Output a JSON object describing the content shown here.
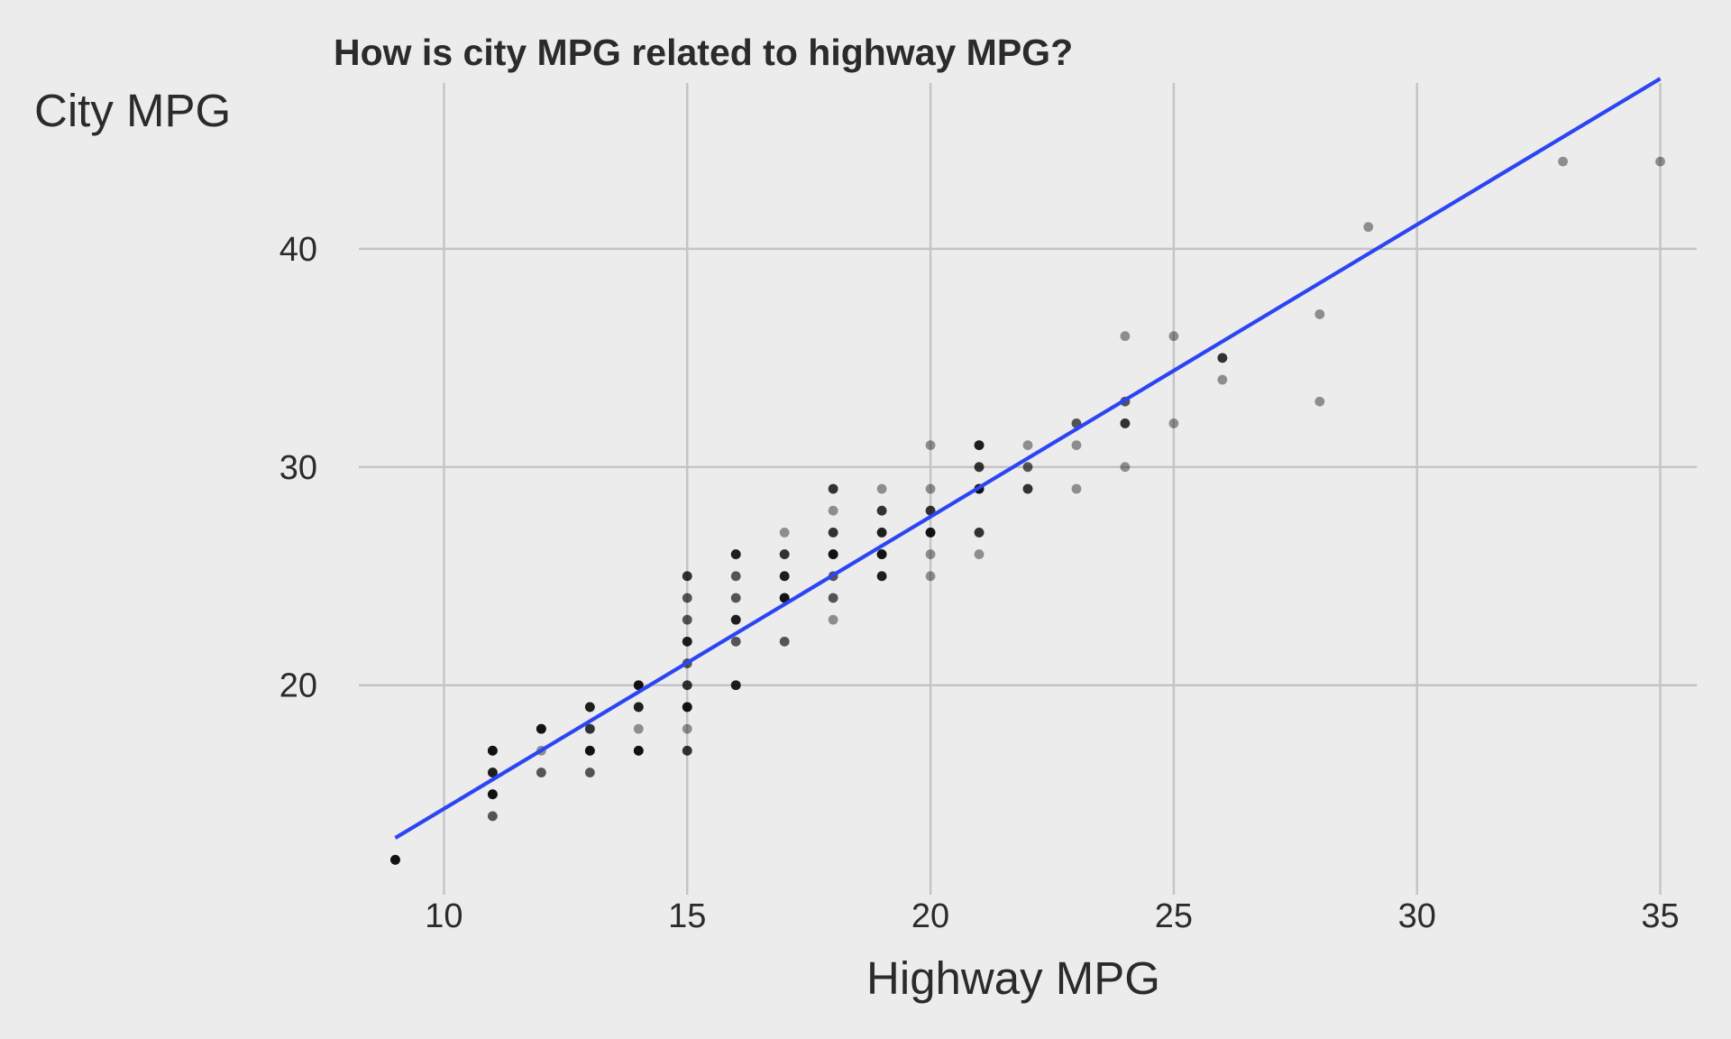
{
  "chart_data": {
    "type": "scatter",
    "title": "How is city MPG related to highway MPG?",
    "xlabel": "Highway MPG",
    "ylabel": "City MPG",
    "xlim": [
      8.25,
      35.75
    ],
    "ylim": [
      10.4,
      47.6
    ],
    "x_ticks": [
      10,
      15,
      20,
      25,
      30,
      35
    ],
    "y_ticks": [
      20,
      30,
      40
    ],
    "x_tick_labels": [
      "10",
      "15",
      "20",
      "25",
      "30",
      "35"
    ],
    "y_tick_labels": [
      "20",
      "30",
      "40"
    ],
    "grid": true,
    "legend": "none",
    "colors": {
      "background": "#ececec",
      "grid": "#c4c4c4",
      "points": "#000000",
      "fit_line": "#2c45f2",
      "text": "#2b2b2b"
    },
    "point_opacity": 0.4,
    "points": [
      [
        9,
        12
      ],
      [
        9,
        12
      ],
      [
        9,
        12
      ],
      [
        9,
        12
      ],
      [
        9,
        12
      ],
      [
        11,
        14
      ],
      [
        11,
        14
      ],
      [
        11,
        15
      ],
      [
        11,
        15
      ],
      [
        11,
        15
      ],
      [
        11,
        15
      ],
      [
        11,
        15
      ],
      [
        11,
        16
      ],
      [
        11,
        16
      ],
      [
        11,
        16
      ],
      [
        11,
        16
      ],
      [
        11,
        17
      ],
      [
        11,
        17
      ],
      [
        11,
        17
      ],
      [
        11,
        17
      ],
      [
        11,
        17
      ],
      [
        12,
        16
      ],
      [
        12,
        16
      ],
      [
        12,
        17
      ],
      [
        12,
        18
      ],
      [
        12,
        18
      ],
      [
        12,
        18
      ],
      [
        12,
        18
      ],
      [
        12,
        18
      ],
      [
        13,
        16
      ],
      [
        13,
        16
      ],
      [
        13,
        17
      ],
      [
        13,
        17
      ],
      [
        13,
        17
      ],
      [
        13,
        17
      ],
      [
        13,
        17
      ],
      [
        13,
        18
      ],
      [
        13,
        18
      ],
      [
        13,
        18
      ],
      [
        13,
        19
      ],
      [
        13,
        19
      ],
      [
        13,
        19
      ],
      [
        13,
        19
      ],
      [
        14,
        17
      ],
      [
        14,
        17
      ],
      [
        14,
        17
      ],
      [
        14,
        17
      ],
      [
        14,
        17
      ],
      [
        14,
        18
      ],
      [
        14,
        19
      ],
      [
        14,
        19
      ],
      [
        14,
        19
      ],
      [
        14,
        19
      ],
      [
        14,
        20
      ],
      [
        14,
        20
      ],
      [
        14,
        20
      ],
      [
        14,
        20
      ],
      [
        14,
        20
      ],
      [
        15,
        17
      ],
      [
        15,
        17
      ],
      [
        15,
        17
      ],
      [
        15,
        18
      ],
      [
        15,
        19
      ],
      [
        15,
        19
      ],
      [
        15,
        19
      ],
      [
        15,
        19
      ],
      [
        15,
        19
      ],
      [
        15,
        20
      ],
      [
        15,
        20
      ],
      [
        15,
        20
      ],
      [
        15,
        21
      ],
      [
        15,
        21
      ],
      [
        15,
        22
      ],
      [
        15,
        22
      ],
      [
        15,
        22
      ],
      [
        15,
        22
      ],
      [
        15,
        23
      ],
      [
        15,
        23
      ],
      [
        15,
        24
      ],
      [
        15,
        24
      ],
      [
        15,
        25
      ],
      [
        15,
        25
      ],
      [
        15,
        25
      ],
      [
        16,
        20
      ],
      [
        16,
        20
      ],
      [
        16,
        20
      ],
      [
        16,
        20
      ],
      [
        16,
        22
      ],
      [
        16,
        22
      ],
      [
        16,
        23
      ],
      [
        16,
        23
      ],
      [
        16,
        23
      ],
      [
        16,
        23
      ],
      [
        16,
        24
      ],
      [
        16,
        24
      ],
      [
        16,
        25
      ],
      [
        16,
        25
      ],
      [
        16,
        26
      ],
      [
        16,
        26
      ],
      [
        16,
        26
      ],
      [
        16,
        26
      ],
      [
        17,
        22
      ],
      [
        17,
        22
      ],
      [
        17,
        24
      ],
      [
        17,
        24
      ],
      [
        17,
        24
      ],
      [
        17,
        24
      ],
      [
        17,
        24
      ],
      [
        17,
        25
      ],
      [
        17,
        25
      ],
      [
        17,
        25
      ],
      [
        17,
        25
      ],
      [
        17,
        26
      ],
      [
        17,
        26
      ],
      [
        17,
        26
      ],
      [
        17,
        27
      ],
      [
        18,
        23
      ],
      [
        18,
        24
      ],
      [
        18,
        24
      ],
      [
        18,
        25
      ],
      [
        18,
        25
      ],
      [
        18,
        26
      ],
      [
        18,
        26
      ],
      [
        18,
        26
      ],
      [
        18,
        26
      ],
      [
        18,
        26
      ],
      [
        18,
        27
      ],
      [
        18,
        27
      ],
      [
        18,
        27
      ],
      [
        18,
        28
      ],
      [
        18,
        29
      ],
      [
        18,
        29
      ],
      [
        18,
        29
      ],
      [
        19,
        25
      ],
      [
        19,
        25
      ],
      [
        19,
        25
      ],
      [
        19,
        25
      ],
      [
        19,
        26
      ],
      [
        19,
        26
      ],
      [
        19,
        26
      ],
      [
        19,
        26
      ],
      [
        19,
        26
      ],
      [
        19,
        27
      ],
      [
        19,
        27
      ],
      [
        19,
        27
      ],
      [
        19,
        27
      ],
      [
        19,
        28
      ],
      [
        19,
        28
      ],
      [
        19,
        28
      ],
      [
        19,
        29
      ],
      [
        20,
        25
      ],
      [
        20,
        26
      ],
      [
        20,
        27
      ],
      [
        20,
        27
      ],
      [
        20,
        27
      ],
      [
        20,
        27
      ],
      [
        20,
        27
      ],
      [
        20,
        28
      ],
      [
        20,
        28
      ],
      [
        20,
        28
      ],
      [
        20,
        29
      ],
      [
        20,
        31
      ],
      [
        21,
        26
      ],
      [
        21,
        27
      ],
      [
        21,
        27
      ],
      [
        21,
        27
      ],
      [
        21,
        29
      ],
      [
        21,
        29
      ],
      [
        21,
        29
      ],
      [
        21,
        29
      ],
      [
        21,
        29
      ],
      [
        21,
        30
      ],
      [
        21,
        30
      ],
      [
        21,
        30
      ],
      [
        21,
        31
      ],
      [
        21,
        31
      ],
      [
        21,
        31
      ],
      [
        21,
        31
      ],
      [
        22,
        29
      ],
      [
        22,
        29
      ],
      [
        22,
        29
      ],
      [
        22,
        30
      ],
      [
        22,
        30
      ],
      [
        22,
        31
      ],
      [
        23,
        29
      ],
      [
        23,
        31
      ],
      [
        23,
        32
      ],
      [
        23,
        32
      ],
      [
        24,
        30
      ],
      [
        24,
        32
      ],
      [
        24,
        32
      ],
      [
        24,
        32
      ],
      [
        24,
        33
      ],
      [
        24,
        33
      ],
      [
        24,
        36
      ],
      [
        25,
        32
      ],
      [
        25,
        36
      ],
      [
        26,
        34
      ],
      [
        26,
        35
      ],
      [
        26,
        35
      ],
      [
        26,
        35
      ],
      [
        28,
        33
      ],
      [
        28,
        37
      ],
      [
        29,
        41
      ],
      [
        33,
        44
      ],
      [
        35,
        44
      ]
    ],
    "fit_line": {
      "x1": 9,
      "y1": 13.0,
      "x2": 35,
      "y2": 47.8
    }
  }
}
